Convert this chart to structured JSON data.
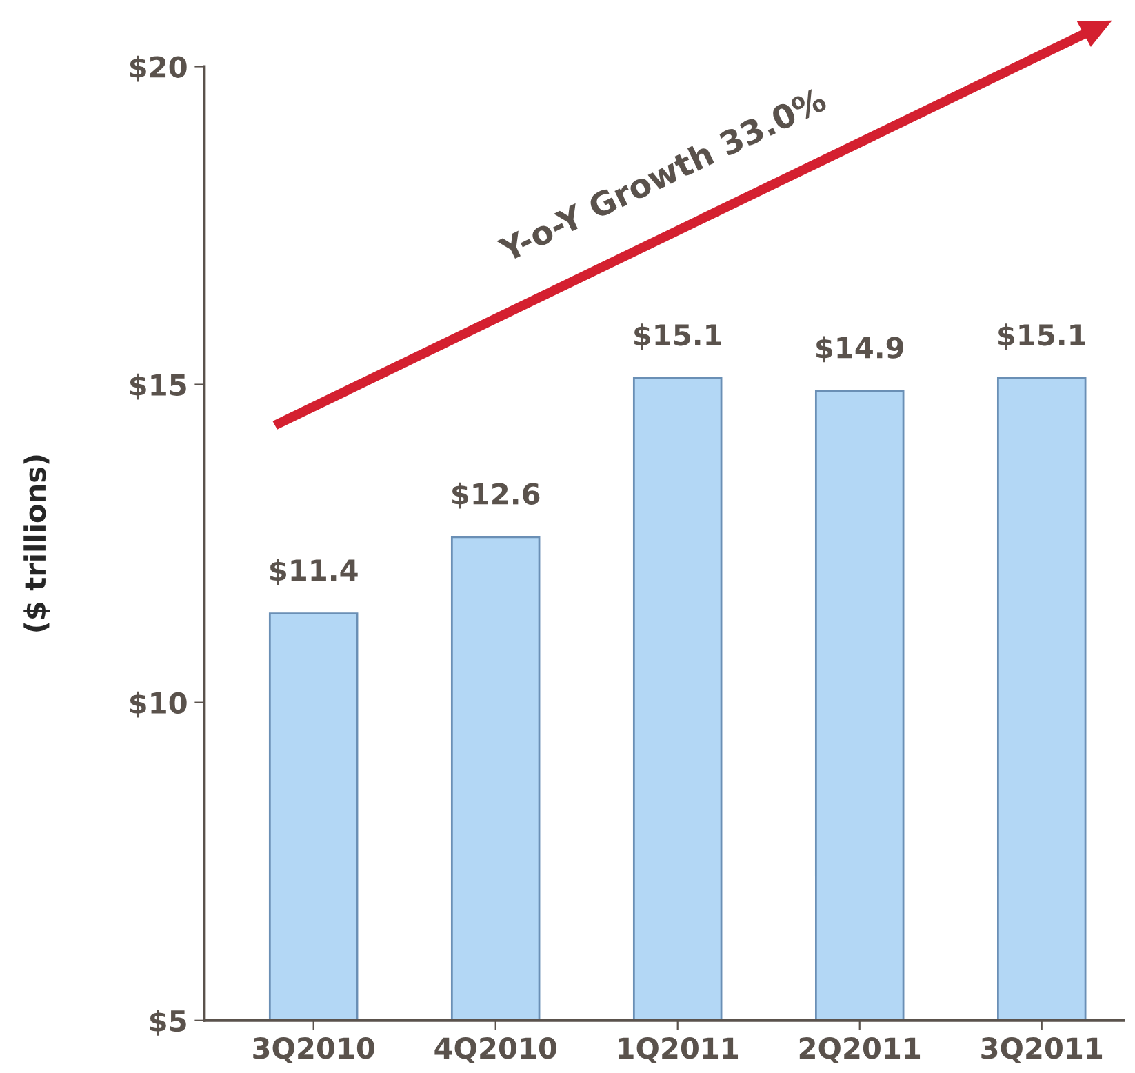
{
  "chart_data": {
    "type": "bar",
    "ylabel": "($ trillions)",
    "categories": [
      "3Q2010",
      "4Q2010",
      "1Q2011",
      "2Q2011",
      "3Q2011"
    ],
    "values": [
      11.4,
      12.6,
      15.1,
      14.9,
      15.1
    ],
    "value_labels": [
      "$11.4",
      "$12.6",
      "$15.1",
      "$14.9",
      "$15.1"
    ],
    "color": "#b3d7f5",
    "ylim": [
      5,
      20
    ],
    "yticks": [
      {
        "value": 5,
        "label": "$5"
      },
      {
        "value": 10,
        "label": "$10"
      },
      {
        "value": 15,
        "label": "$15"
      },
      {
        "value": 20,
        "label": "$20"
      }
    ],
    "annotations": [
      "Y-o-Y Growth 33.0%"
    ],
    "grid": false
  }
}
